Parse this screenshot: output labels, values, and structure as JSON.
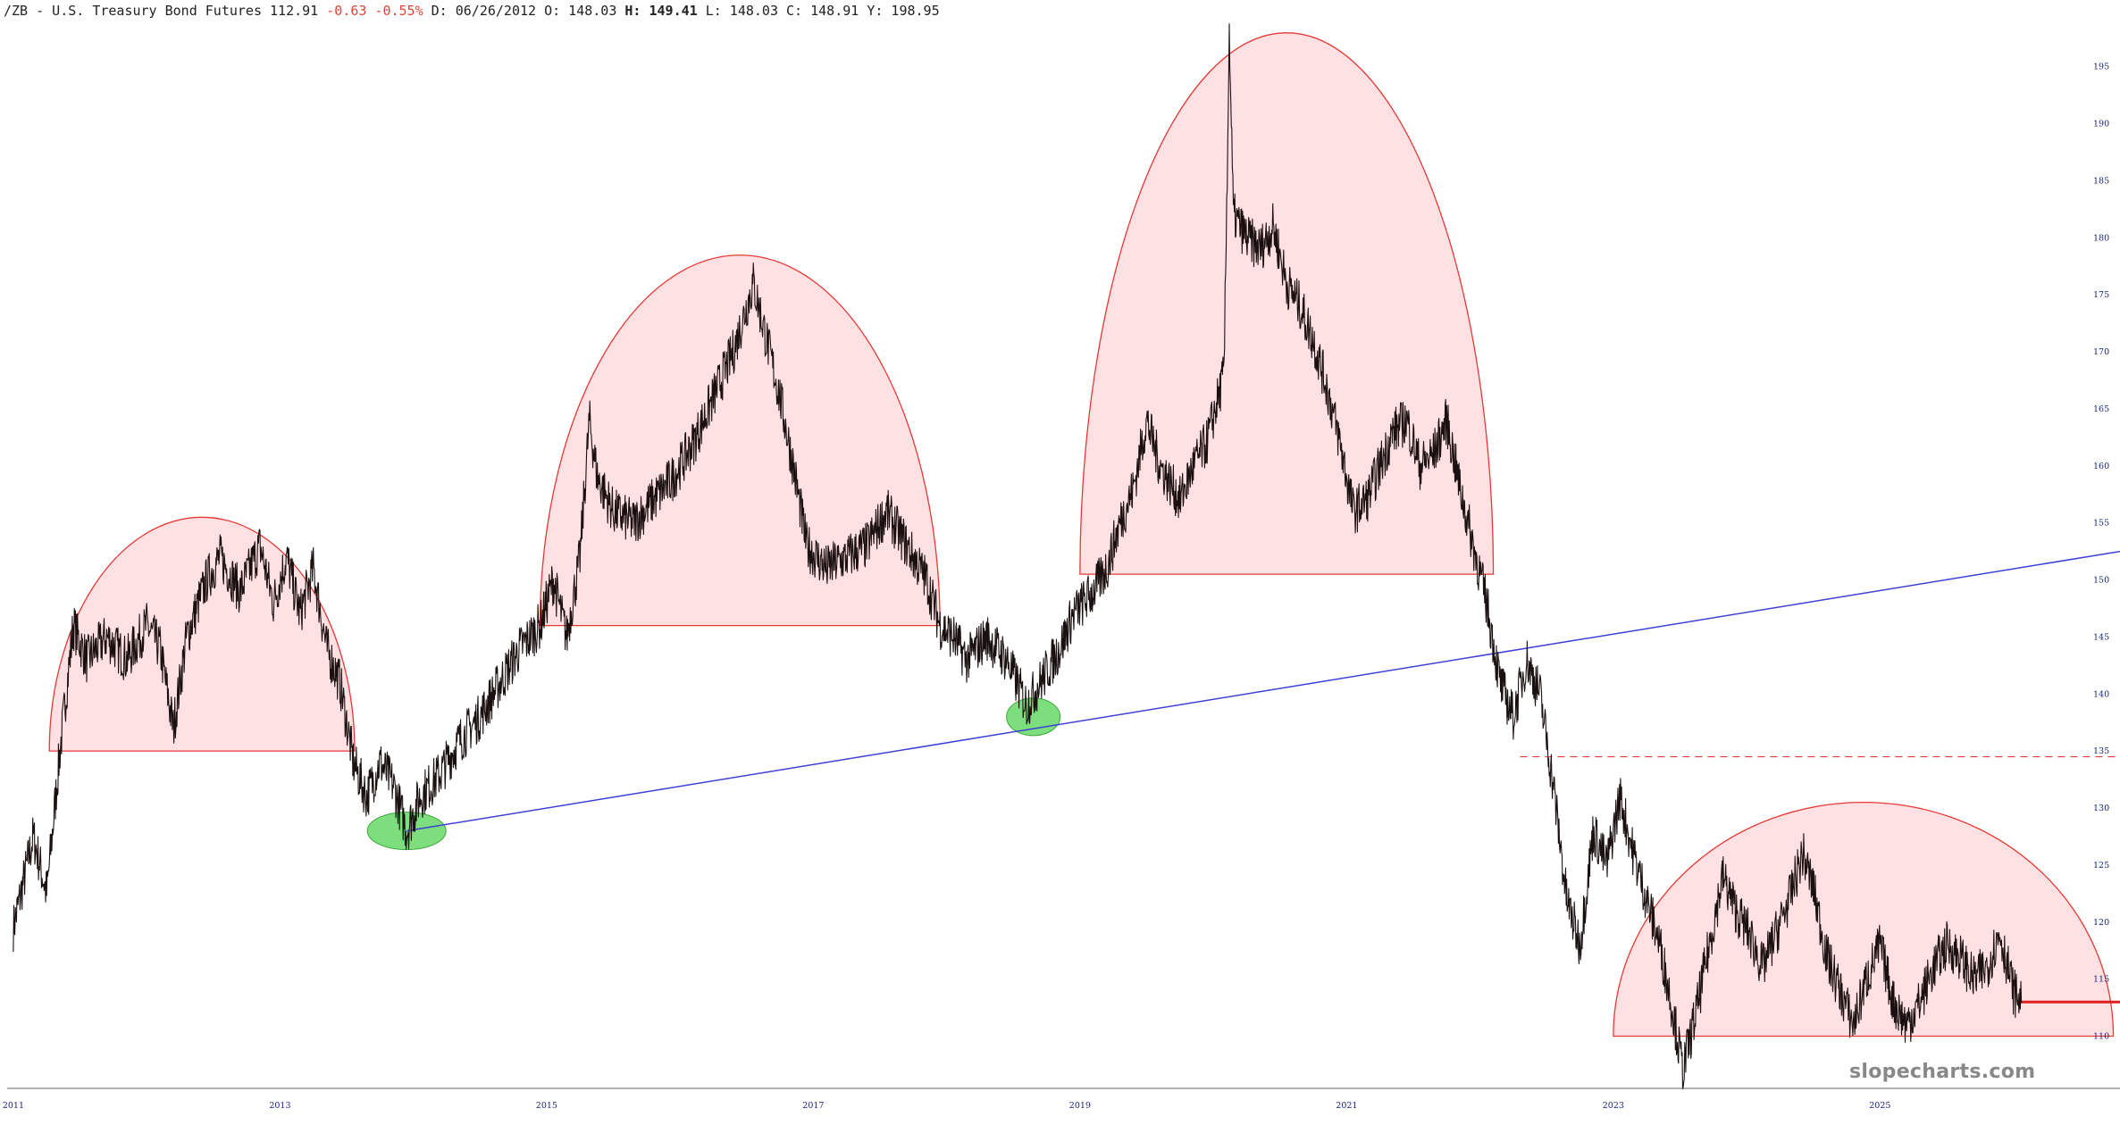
{
  "header": {
    "symbol": "/ZB - U.S. Treasury Bond Futures 112.91",
    "change": "-0.63 -0.55%",
    "date": "D: 06/26/2012",
    "open": "O: 148.03",
    "high_label": "H:",
    "high_value": "149.41",
    "low": "L: 148.03",
    "close": "C: 148.91",
    "y": "Y: 198.95"
  },
  "watermark": "slopecharts.com",
  "colors": {
    "price": "#1a1010",
    "arc_fill": "#ffe0e3",
    "arc_stroke": "#e53935",
    "trendline": "#3f3fd6",
    "highlight": "#5cd65c",
    "axis_text": "#1a237e"
  },
  "chart_data": {
    "type": "line",
    "series_name": "",
    "x_ticks": [
      "2011",
      "2013",
      "2015",
      "2017",
      "2019",
      "2021",
      "2023",
      "2025"
    ],
    "y_ticks": [
      110,
      115,
      120,
      125,
      130,
      135,
      140,
      145,
      150,
      155,
      160,
      165,
      170,
      175,
      180,
      185,
      190,
      195
    ],
    "xlim": [
      2010.9,
      2026.8
    ],
    "ylim": [
      105.5,
      198.5
    ],
    "price": [
      [
        2011.0,
        119.5
      ],
      [
        2011.15,
        127.5
      ],
      [
        2011.25,
        122.5
      ],
      [
        2011.35,
        135
      ],
      [
        2011.45,
        146
      ],
      [
        2011.55,
        143
      ],
      [
        2011.7,
        145
      ],
      [
        2011.85,
        143
      ],
      [
        2012.0,
        146
      ],
      [
        2012.1,
        144
      ],
      [
        2012.2,
        137
      ],
      [
        2012.3,
        145
      ],
      [
        2012.45,
        150
      ],
      [
        2012.55,
        152
      ],
      [
        2012.7,
        149
      ],
      [
        2012.85,
        153
      ],
      [
        2012.95,
        148
      ],
      [
        2013.05,
        152
      ],
      [
        2013.15,
        147
      ],
      [
        2013.25,
        151
      ],
      [
        2013.35,
        144
      ],
      [
        2013.45,
        141
      ],
      [
        2013.55,
        134
      ],
      [
        2013.65,
        131
      ],
      [
        2013.75,
        134
      ],
      [
        2013.85,
        132
      ],
      [
        2013.95,
        128
      ],
      [
        2014.05,
        131
      ],
      [
        2014.2,
        133
      ],
      [
        2014.35,
        136
      ],
      [
        2014.5,
        138
      ],
      [
        2014.65,
        141
      ],
      [
        2014.8,
        144
      ],
      [
        2014.95,
        146
      ],
      [
        2015.05,
        150
      ],
      [
        2015.15,
        145
      ],
      [
        2015.25,
        152
      ],
      [
        2015.32,
        164
      ],
      [
        2015.38,
        159
      ],
      [
        2015.5,
        156
      ],
      [
        2015.65,
        155
      ],
      [
        2015.8,
        157
      ],
      [
        2015.95,
        159
      ],
      [
        2016.1,
        162
      ],
      [
        2016.25,
        166
      ],
      [
        2016.4,
        170
      ],
      [
        2016.55,
        176
      ],
      [
        2016.65,
        171
      ],
      [
        2016.75,
        166
      ],
      [
        2016.85,
        160
      ],
      [
        2016.95,
        153
      ],
      [
        2017.1,
        151
      ],
      [
        2017.25,
        152
      ],
      [
        2017.4,
        153
      ],
      [
        2017.55,
        156
      ],
      [
        2017.7,
        153
      ],
      [
        2017.85,
        150
      ],
      [
        2017.95,
        146
      ],
      [
        2018.05,
        145
      ],
      [
        2018.15,
        143
      ],
      [
        2018.3,
        145
      ],
      [
        2018.45,
        143
      ],
      [
        2018.6,
        139
      ],
      [
        2018.75,
        142
      ],
      [
        2018.85,
        144
      ],
      [
        2018.95,
        147
      ],
      [
        2019.1,
        149
      ],
      [
        2019.2,
        151
      ],
      [
        2019.3,
        155
      ],
      [
        2019.4,
        158
      ],
      [
        2019.5,
        164
      ],
      [
        2019.6,
        160
      ],
      [
        2019.75,
        157
      ],
      [
        2019.85,
        160
      ],
      [
        2019.95,
        162
      ],
      [
        2020.08,
        168
      ],
      [
        2020.12,
        198
      ],
      [
        2020.15,
        182
      ],
      [
        2020.25,
        180
      ],
      [
        2020.35,
        179
      ],
      [
        2020.45,
        181
      ],
      [
        2020.55,
        176
      ],
      [
        2020.65,
        174
      ],
      [
        2020.75,
        171
      ],
      [
        2020.85,
        167
      ],
      [
        2020.95,
        162
      ],
      [
        2021.05,
        156
      ],
      [
        2021.15,
        157
      ],
      [
        2021.25,
        160
      ],
      [
        2021.35,
        163
      ],
      [
        2021.45,
        164
      ],
      [
        2021.55,
        160
      ],
      [
        2021.65,
        161
      ],
      [
        2021.75,
        164
      ],
      [
        2021.85,
        158
      ],
      [
        2021.95,
        153
      ],
      [
        2022.05,
        148
      ],
      [
        2022.15,
        141
      ],
      [
        2022.25,
        138
      ],
      [
        2022.35,
        143
      ],
      [
        2022.45,
        140
      ],
      [
        2022.55,
        132
      ],
      [
        2022.65,
        122
      ],
      [
        2022.75,
        118
      ],
      [
        2022.85,
        128
      ],
      [
        2022.95,
        125
      ],
      [
        2023.05,
        131
      ],
      [
        2023.15,
        126
      ],
      [
        2023.25,
        122
      ],
      [
        2023.35,
        118
      ],
      [
        2023.45,
        112
      ],
      [
        2023.52,
        107
      ],
      [
        2023.62,
        112
      ],
      [
        2023.72,
        118
      ],
      [
        2023.82,
        124
      ],
      [
        2023.92,
        121
      ],
      [
        2024.02,
        119
      ],
      [
        2024.12,
        116
      ],
      [
        2024.22,
        119
      ],
      [
        2024.32,
        122
      ],
      [
        2024.42,
        126
      ],
      [
        2024.5,
        123
      ],
      [
        2024.6,
        117
      ],
      [
        2024.7,
        114
      ],
      [
        2024.8,
        111
      ],
      [
        2024.9,
        115
      ],
      [
        2025.0,
        118
      ],
      [
        2025.1,
        113
      ],
      [
        2025.2,
        111
      ],
      [
        2025.3,
        113
      ],
      [
        2025.4,
        116
      ],
      [
        2025.5,
        118
      ],
      [
        2025.6,
        117
      ],
      [
        2025.7,
        115
      ],
      [
        2025.8,
        116
      ],
      [
        2025.9,
        119
      ],
      [
        2026.0,
        114
      ],
      [
        2026.06,
        112.9
      ]
    ],
    "annotations": {
      "arcs": [
        {
          "x_start": 2011.27,
          "x_end": 2013.56,
          "base": 135.0,
          "peak": 155.5
        },
        {
          "x_start": 2014.95,
          "x_end": 2017.95,
          "base": 146.0,
          "peak": 178.5
        },
        {
          "x_start": 2019.0,
          "x_end": 2022.1,
          "base": 150.5,
          "peak": 198.0
        },
        {
          "x_start": 2023.0,
          "x_end": 2026.75,
          "base": 110.0,
          "peak": 130.5
        }
      ],
      "trendline": {
        "start": [
          2013.95,
          128.0
        ],
        "end": [
          2026.8,
          152.5
        ]
      },
      "highlights": [
        {
          "x": 2013.95,
          "y": 128.0
        },
        {
          "x": 2018.65,
          "y": 138.0
        }
      ],
      "resistance_dashed": {
        "y": 134.5,
        "x_start": 2022.3,
        "x_end": 2026.8
      },
      "current_price": {
        "y": 113.0,
        "x_start": 2026.06,
        "x_end": 2026.8
      }
    }
  }
}
